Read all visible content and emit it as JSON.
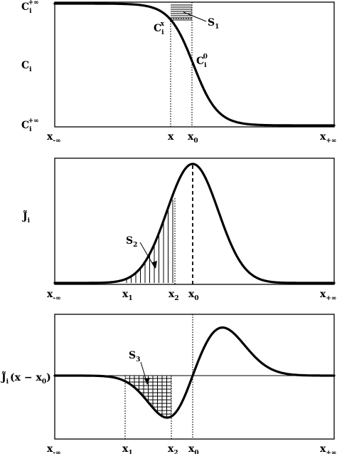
{
  "panel1": {
    "ylabel": "C",
    "ylabel_sub": "i",
    "top_label": "C",
    "top_label_sub": "i",
    "top_label_sup": "+∞",
    "bottom_label": "C",
    "bottom_label_sub": "i",
    "bottom_label_sup": "+∞",
    "cx_label": "C",
    "cx_label_sub": "i",
    "cx_label_sup": "x",
    "c0_label": "C",
    "c0_label_sub": "i",
    "c0_label_sup": "0",
    "s1_label": "S",
    "s1_sub": "1",
    "ticks": [
      {
        "main": "x",
        "sub": "-∞"
      },
      {
        "main": "x",
        "sub": ""
      },
      {
        "main": "x",
        "sub": "0"
      },
      {
        "main": "x",
        "sub": "+∞"
      }
    ]
  },
  "panel2": {
    "ylabel": "J̃",
    "ylabel_sub": "i",
    "s2_label": "S",
    "s2_sub": "2",
    "ticks": [
      {
        "main": "x",
        "sub": "-∞"
      },
      {
        "main": "x",
        "sub": "1"
      },
      {
        "main": "x",
        "sub": "2"
      },
      {
        "main": "x",
        "sub": "0"
      },
      {
        "main": "x",
        "sub": "+∞"
      }
    ]
  },
  "panel3": {
    "ylabel": "J̃",
    "ylabel_sub": "i",
    "ylabel_rest": "(x − x",
    "ylabel_rest_sub": "0",
    "ylabel_close": ")",
    "s3_label": "S",
    "s3_sub": "3",
    "ticks": [
      {
        "main": "x",
        "sub": "-∞"
      },
      {
        "main": "x",
        "sub": "1"
      },
      {
        "main": "x",
        "sub": "2"
      },
      {
        "main": "x",
        "sub": "0"
      },
      {
        "main": "x",
        "sub": "+∞"
      }
    ]
  }
}
